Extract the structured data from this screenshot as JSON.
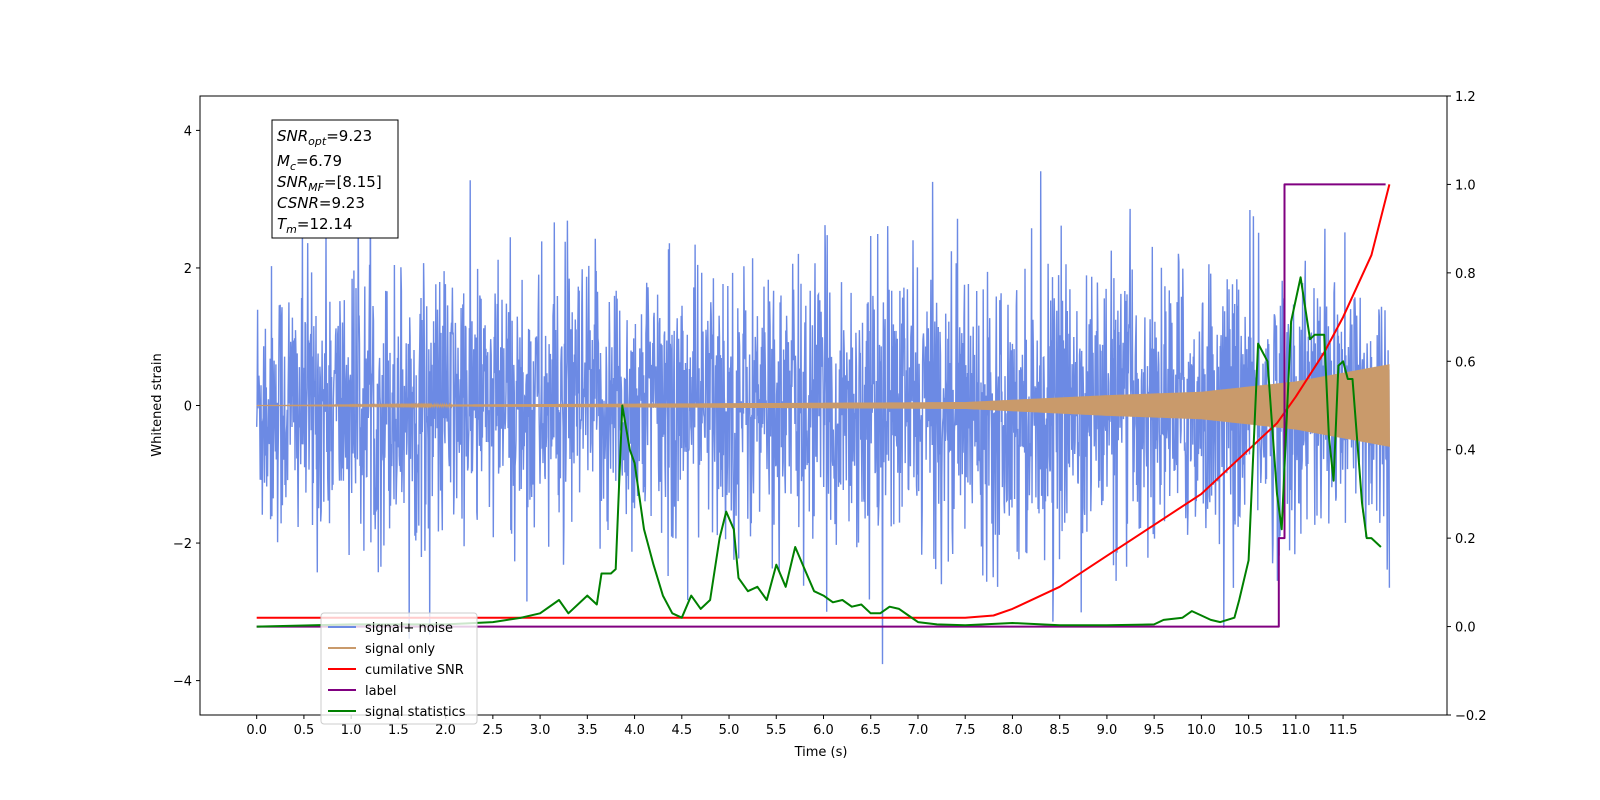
{
  "chart_data": {
    "type": "line",
    "title": "",
    "xlabel": "Time (s)",
    "ylabel": "Whitened strain",
    "xlim": [
      -0.6,
      12.6
    ],
    "ylim": [
      -4.5,
      4.5
    ],
    "y2lim": [
      -0.2,
      1.2
    ],
    "xticks": [
      "0.0",
      "0.5",
      "1.0",
      "1.5",
      "2.0",
      "2.5",
      "3.0",
      "3.5",
      "4.0",
      "4.5",
      "5.0",
      "5.5",
      "6.0",
      "6.5",
      "7.0",
      "7.5",
      "8.0",
      "8.5",
      "9.0",
      "9.5",
      "10.0",
      "10.5",
      "11.0",
      "11.5"
    ],
    "yticks": [
      "4",
      "2",
      "0",
      "−2",
      "−4"
    ],
    "y2ticks": [
      "1.2",
      "1.0",
      "0.8",
      "0.6",
      "0.4",
      "0.2",
      "0.0",
      "−0.2"
    ],
    "grid": false,
    "legend_position": "lower-left",
    "annotation": {
      "snr_opt": {
        "base": "SNR",
        "sub": "opt",
        "value": "=9.23"
      },
      "mc": {
        "base": "M",
        "sub": "c",
        "value": "=6.79"
      },
      "snr_mf": {
        "base": "SNR",
        "sub": "MF",
        "value": "=[8.15]"
      },
      "csnr": {
        "base": "CSNR",
        "value": "=9.23"
      },
      "tm": {
        "base": "T",
        "sub": "m",
        "value": "=12.14"
      }
    },
    "series": [
      {
        "name": "signal+ noise",
        "color": "#6c8ae4",
        "axis": "left",
        "style": "noise",
        "x_range": [
          0.0,
          11.99
        ],
        "sigma": 1.0
      },
      {
        "name": "signal only",
        "color": "#c99a6b",
        "axis": "left",
        "style": "chirp",
        "x_range": [
          0.0,
          11.99
        ],
        "envelope": [
          [
            0.0,
            0.0
          ],
          [
            7.5,
            0.05
          ],
          [
            9.0,
            0.15
          ],
          [
            10.0,
            0.2
          ],
          [
            11.0,
            0.35
          ],
          [
            11.99,
            0.6
          ]
        ]
      },
      {
        "name": "cumilative SNR",
        "color": "#ff0000",
        "axis": "right",
        "x": [
          0.0,
          7.5,
          7.8,
          8.0,
          8.5,
          9.0,
          9.5,
          10.0,
          10.5,
          10.8,
          11.0,
          11.3,
          11.5,
          11.8,
          11.99
        ],
        "y": [
          0.02,
          0.02,
          0.025,
          0.04,
          0.09,
          0.16,
          0.23,
          0.3,
          0.4,
          0.46,
          0.52,
          0.62,
          0.7,
          0.84,
          1.0
        ]
      },
      {
        "name": "label",
        "color": "#800080",
        "axis": "right",
        "x": [
          0.0,
          10.82,
          10.82,
          10.88,
          10.88,
          11.95
        ],
        "y": [
          0.0,
          0.0,
          0.2,
          0.2,
          1.0,
          1.0
        ]
      },
      {
        "name": "signal statistics",
        "color": "#008000",
        "axis": "right",
        "x": [
          0.0,
          1.0,
          2.0,
          2.5,
          2.8,
          3.0,
          3.2,
          3.3,
          3.5,
          3.6,
          3.65,
          3.75,
          3.8,
          3.87,
          3.95,
          4.0,
          4.1,
          4.2,
          4.3,
          4.4,
          4.5,
          4.6,
          4.7,
          4.8,
          4.9,
          4.97,
          5.05,
          5.1,
          5.2,
          5.3,
          5.4,
          5.5,
          5.6,
          5.7,
          5.8,
          5.9,
          6.0,
          6.1,
          6.2,
          6.3,
          6.4,
          6.5,
          6.6,
          6.7,
          6.8,
          6.9,
          7.0,
          7.2,
          7.5,
          8.0,
          8.5,
          9.0,
          9.5,
          9.6,
          9.8,
          9.9,
          10.0,
          10.1,
          10.2,
          10.35,
          10.4,
          10.5,
          10.6,
          10.7,
          10.8,
          10.85,
          10.95,
          11.05,
          11.15,
          11.2,
          11.3,
          11.35,
          11.4,
          11.45,
          11.5,
          11.55,
          11.6,
          11.7,
          11.75,
          11.8,
          11.9
        ],
        "y": [
          0.0,
          0.005,
          0.005,
          0.01,
          0.02,
          0.03,
          0.06,
          0.03,
          0.07,
          0.05,
          0.12,
          0.12,
          0.13,
          0.5,
          0.4,
          0.37,
          0.22,
          0.14,
          0.07,
          0.03,
          0.02,
          0.07,
          0.04,
          0.06,
          0.2,
          0.26,
          0.22,
          0.11,
          0.08,
          0.09,
          0.06,
          0.14,
          0.09,
          0.18,
          0.13,
          0.08,
          0.07,
          0.055,
          0.06,
          0.045,
          0.05,
          0.03,
          0.03,
          0.045,
          0.04,
          0.025,
          0.01,
          0.005,
          0.003,
          0.008,
          0.003,
          0.003,
          0.005,
          0.015,
          0.02,
          0.035,
          0.025,
          0.015,
          0.01,
          0.02,
          0.06,
          0.15,
          0.64,
          0.6,
          0.3,
          0.22,
          0.69,
          0.79,
          0.65,
          0.66,
          0.66,
          0.43,
          0.33,
          0.59,
          0.6,
          0.56,
          0.56,
          0.28,
          0.2,
          0.2,
          0.18
        ]
      }
    ]
  }
}
